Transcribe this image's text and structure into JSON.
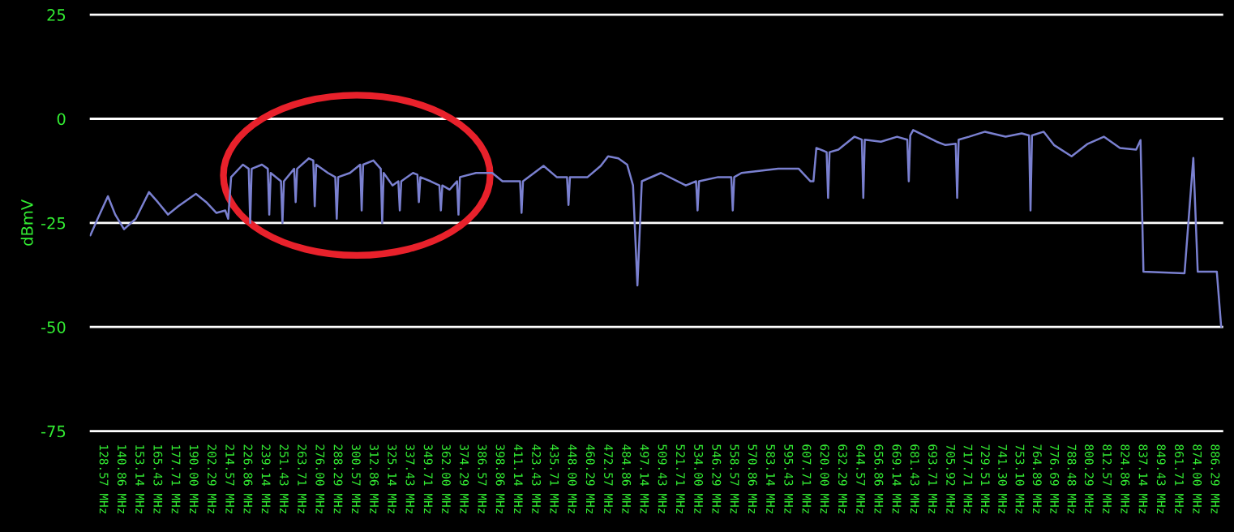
{
  "chart_data": {
    "type": "line",
    "ylabel": "dBmV",
    "xlim": [
      119,
      893
    ],
    "ylim": [
      -77,
      27
    ],
    "yticks": [
      25,
      0,
      -25,
      -50,
      -75
    ],
    "xticks": [
      {
        "value": 128.57,
        "label": "128.57 MHz"
      },
      {
        "value": 140.86,
        "label": "140.86 MHz"
      },
      {
        "value": 153.14,
        "label": "153.14 MHz"
      },
      {
        "value": 165.43,
        "label": "165.43 MHz"
      },
      {
        "value": 177.71,
        "label": "177.71 MHz"
      },
      {
        "value": 190.0,
        "label": "190.00 MHz"
      },
      {
        "value": 202.29,
        "label": "202.29 MHz"
      },
      {
        "value": 214.57,
        "label": "214.57 MHz"
      },
      {
        "value": 226.86,
        "label": "226.86 MHz"
      },
      {
        "value": 239.14,
        "label": "239.14 MHz"
      },
      {
        "value": 251.43,
        "label": "251.43 MHz"
      },
      {
        "value": 263.71,
        "label": "263.71 MHz"
      },
      {
        "value": 276.0,
        "label": "276.00 MHz"
      },
      {
        "value": 288.29,
        "label": "288.29 MHz"
      },
      {
        "value": 300.57,
        "label": "300.57 MHz"
      },
      {
        "value": 312.86,
        "label": "312.86 MHz"
      },
      {
        "value": 325.14,
        "label": "325.14 MHz"
      },
      {
        "value": 337.43,
        "label": "337.43 MHz"
      },
      {
        "value": 349.71,
        "label": "349.71 MHz"
      },
      {
        "value": 362.0,
        "label": "362.00 MHz"
      },
      {
        "value": 374.29,
        "label": "374.29 MHz"
      },
      {
        "value": 386.57,
        "label": "386.57 MHz"
      },
      {
        "value": 398.86,
        "label": "398.86 MHz"
      },
      {
        "value": 411.14,
        "label": "411.14 MHz"
      },
      {
        "value": 423.43,
        "label": "423.43 MHz"
      },
      {
        "value": 435.71,
        "label": "435.71 MHz"
      },
      {
        "value": 448.0,
        "label": "448.00 MHz"
      },
      {
        "value": 460.29,
        "label": "460.29 MHz"
      },
      {
        "value": 472.57,
        "label": "472.57 MHz"
      },
      {
        "value": 484.86,
        "label": "484.86 MHz"
      },
      {
        "value": 497.14,
        "label": "497.14 MHz"
      },
      {
        "value": 509.43,
        "label": "509.43 MHz"
      },
      {
        "value": 521.71,
        "label": "521.71 MHz"
      },
      {
        "value": 534.0,
        "label": "534.00 MHz"
      },
      {
        "value": 546.29,
        "label": "546.29 MHz"
      },
      {
        "value": 558.57,
        "label": "558.57 MHz"
      },
      {
        "value": 570.86,
        "label": "570.86 MHz"
      },
      {
        "value": 583.14,
        "label": "583.14 MHz"
      },
      {
        "value": 595.43,
        "label": "595.43 MHz"
      },
      {
        "value": 607.71,
        "label": "607.71 MHz"
      },
      {
        "value": 620.0,
        "label": "620.00 MHz"
      },
      {
        "value": 632.29,
        "label": "632.29 MHz"
      },
      {
        "value": 644.57,
        "label": "644.57 MHz"
      },
      {
        "value": 656.86,
        "label": "656.86 MHz"
      },
      {
        "value": 669.14,
        "label": "669.14 MHz"
      },
      {
        "value": 681.43,
        "label": "681.43 MHz"
      },
      {
        "value": 693.71,
        "label": "693.71 MHz"
      },
      {
        "value": 705.92,
        "label": "705.92 MHz"
      },
      {
        "value": 717.71,
        "label": "717.71 MHz"
      },
      {
        "value": 729.51,
        "label": "729.51 MHz"
      },
      {
        "value": 741.3,
        "label": "741.30 MHz"
      },
      {
        "value": 753.1,
        "label": "753.10 MHz"
      },
      {
        "value": 764.89,
        "label": "764.89 MHz"
      },
      {
        "value": 776.69,
        "label": "776.69 MHz"
      },
      {
        "value": 788.48,
        "label": "788.48 MHz"
      },
      {
        "value": 800.29,
        "label": "800.29 MHz"
      },
      {
        "value": 812.57,
        "label": "812.57 MHz"
      },
      {
        "value": 824.86,
        "label": "824.86 MHz"
      },
      {
        "value": 837.14,
        "label": "837.14 MHz"
      },
      {
        "value": 849.43,
        "label": "849.43 MHz"
      },
      {
        "value": 861.71,
        "label": "861.71 MHz"
      },
      {
        "value": 874.0,
        "label": "874.00 MHz"
      },
      {
        "value": 886.29,
        "label": "886.29 MHz"
      }
    ],
    "grid": "y",
    "marker": "none",
    "line_style": "solid",
    "series": [
      {
        "color": "#7a80d0",
        "x": [
          120,
          125,
          132,
          137,
          143,
          151,
          160,
          166,
          173,
          180,
          192,
          199,
          206,
          212,
          214,
          216,
          224,
          228,
          229,
          230,
          237,
          241,
          242,
          243,
          250,
          251,
          252,
          259,
          260,
          261,
          269,
          272,
          273,
          274,
          282,
          287,
          288,
          289,
          297,
          304,
          305,
          306,
          313,
          318,
          319,
          320,
          326,
          330,
          331,
          332,
          340,
          343,
          344,
          345,
          352,
          358,
          359,
          360,
          365,
          370,
          371,
          372,
          383,
          394,
          401,
          413,
          414,
          415,
          429,
          438,
          445,
          446,
          447,
          459,
          468,
          473,
          480,
          486,
          490,
          493,
          496,
          509,
          526,
          533,
          534,
          535,
          548,
          557,
          558,
          559,
          564,
          589,
          603,
          611,
          613,
          615,
          622,
          623,
          624,
          630,
          641,
          646,
          647,
          648,
          659,
          670,
          677,
          678,
          679,
          681,
          697,
          703,
          710,
          711,
          712,
          719,
          730,
          744,
          755,
          760,
          761,
          762,
          770,
          777,
          789,
          800,
          811,
          822,
          833,
          836,
          838,
          866,
          872,
          875,
          888,
          891
        ],
        "values": [
          -28,
          -24,
          -18.6,
          -23,
          -26.5,
          -24,
          -17.6,
          -20,
          -23,
          -21,
          -18,
          -20,
          -22.6,
          -22,
          -24,
          -14,
          -11,
          -12,
          -25,
          -12,
          -11,
          -12,
          -23,
          -13,
          -15,
          -25,
          -15,
          -12,
          -20,
          -12,
          -9.5,
          -10,
          -21,
          -11,
          -13,
          -14,
          -24,
          -14,
          -13,
          -11,
          -22,
          -11,
          -10,
          -12,
          -25,
          -13,
          -16,
          -15,
          -22,
          -15,
          -13,
          -13.4,
          -20,
          -14,
          -15,
          -16,
          -22,
          -16,
          -17,
          -15,
          -23,
          -14,
          -13,
          -13,
          -15,
          -15,
          -22.6,
          -15,
          -11.3,
          -14,
          -14,
          -20.7,
          -14,
          -14,
          -11.3,
          -9,
          -9.5,
          -11,
          -16,
          -40,
          -15,
          -13,
          -16,
          -15,
          -22,
          -15,
          -14,
          -14,
          -22,
          -14,
          -13,
          -12,
          -12,
          -15,
          -15,
          -7,
          -8,
          -19,
          -8,
          -7.4,
          -4.3,
          -5,
          -19,
          -5,
          -5.5,
          -4.3,
          -5,
          -15,
          -4,
          -2.7,
          -5.5,
          -6.3,
          -6,
          -19,
          -5,
          -4.3,
          -3.1,
          -4.3,
          -3.5,
          -4,
          -22,
          -4,
          -3.1,
          -6.3,
          -9,
          -6,
          -4.3,
          -7,
          -7.4,
          -5.1,
          -36.7,
          -37.1,
          -9.4,
          -36.7,
          -36.7,
          -50
        ]
      }
    ]
  }
}
